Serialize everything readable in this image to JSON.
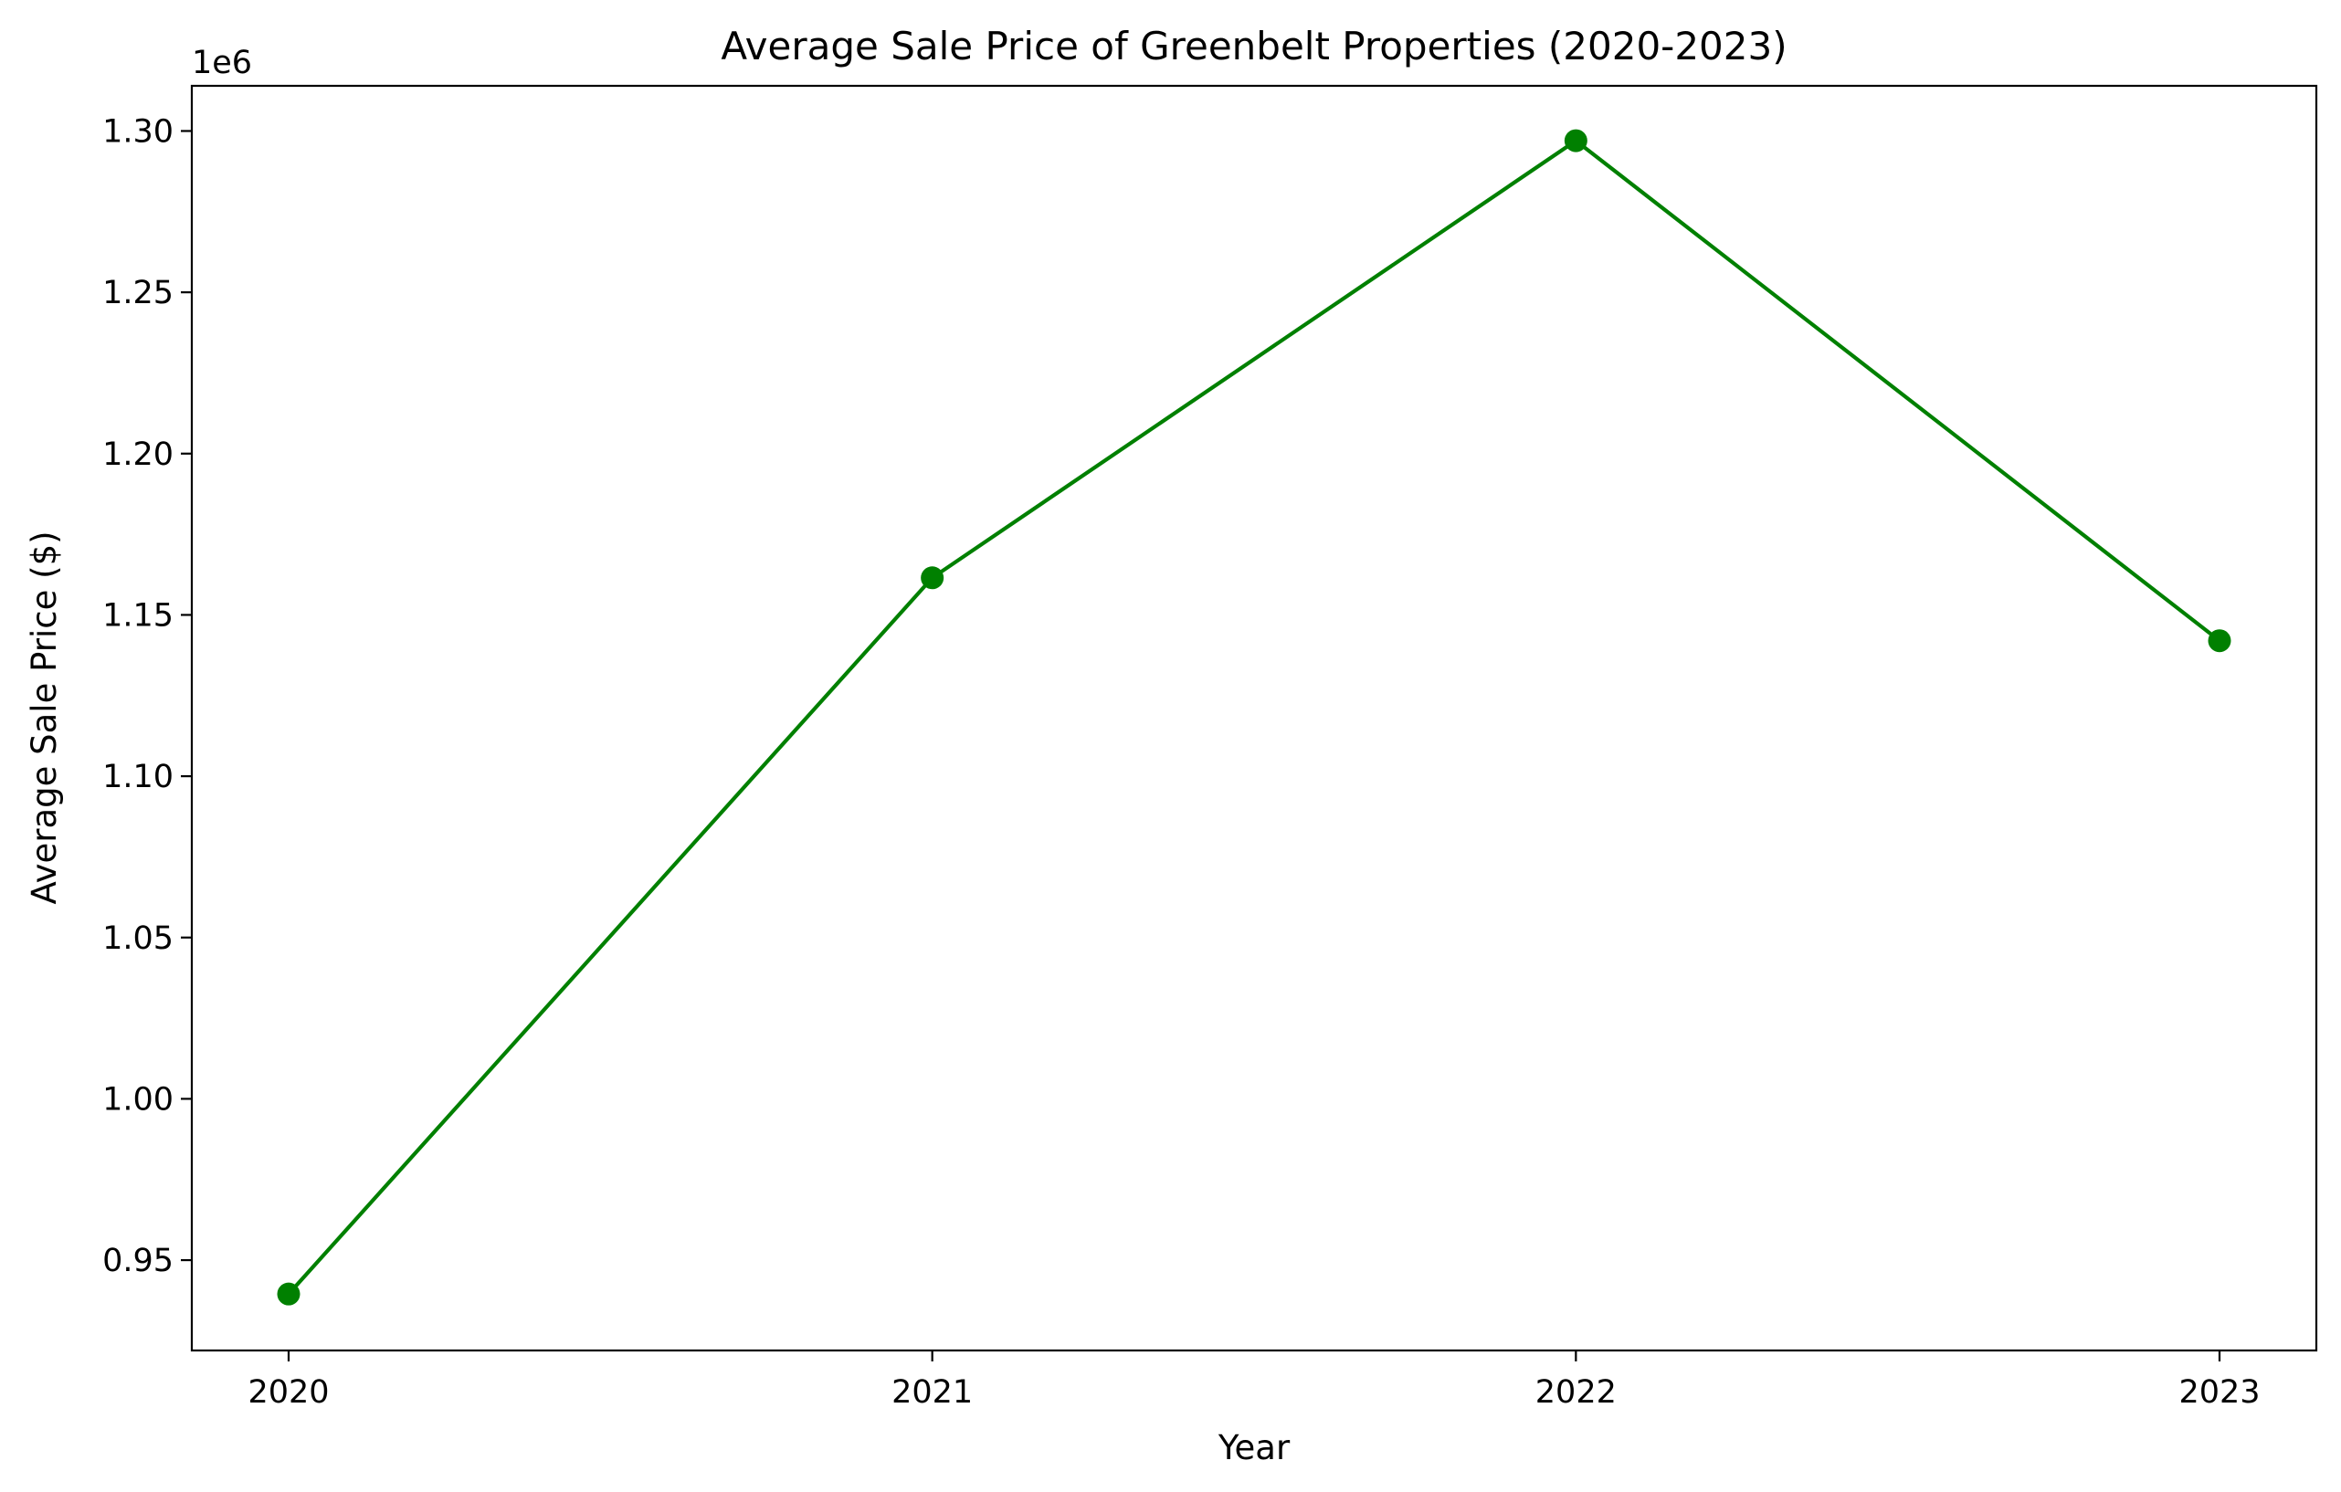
{
  "chart_data": {
    "type": "line",
    "title": "Average Sale Price of Greenbelt Properties (2020-2023)",
    "xlabel": "Year",
    "ylabel": "Average Sale Price ($)",
    "y_offset_label": "1e6",
    "categories": [
      "2020",
      "2021",
      "2022",
      "2023"
    ],
    "series": [
      {
        "color": "#008000",
        "marker": "circle",
        "values": [
          939500,
          1161500,
          1297000,
          1142000
        ]
      }
    ],
    "ylim": [
      922000,
      1314000
    ],
    "yticks": [
      950000,
      1000000,
      1050000,
      1100000,
      1150000,
      1200000,
      1250000,
      1300000
    ],
    "ytick_labels": [
      "0.95",
      "1.00",
      "1.05",
      "1.10",
      "1.15",
      "1.20",
      "1.25",
      "1.30"
    ],
    "grid": false,
    "legend": "none"
  }
}
